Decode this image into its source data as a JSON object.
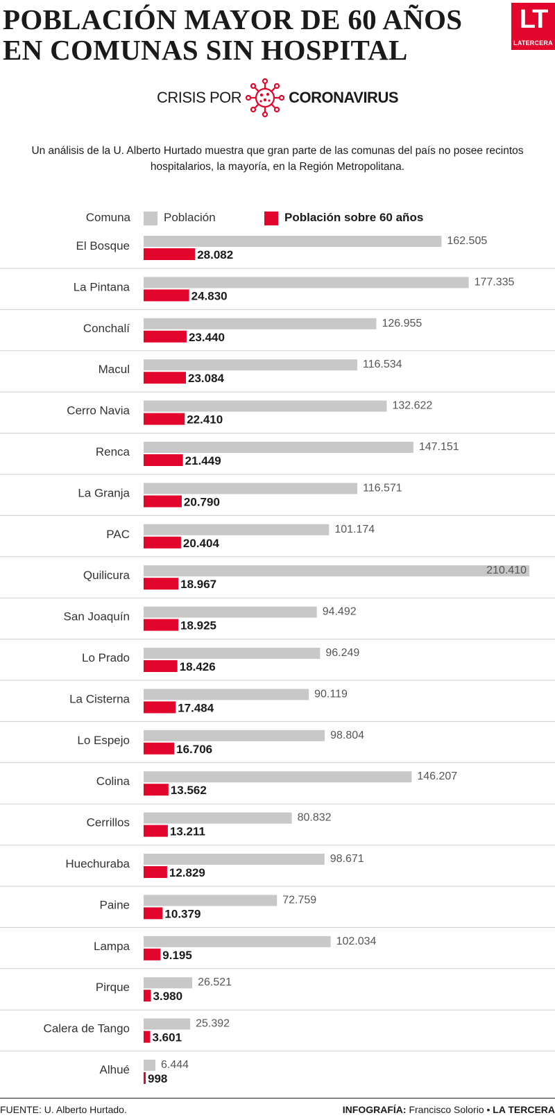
{
  "header": {
    "title_line1": "POBLACIÓN MAYOR DE 60 AÑOS",
    "title_line2": "EN COMUNAS SIN HOSPITAL",
    "logo_mark": "LT",
    "logo_name": "LATERCERA",
    "section_prefix": "CRISIS POR",
    "section_topic": "CORONAVIRUS",
    "intro": "Un análisis de la U. Alberto Hurtado muestra que gran parte de las comunas del país no posee recintos hospitalarios, la mayoría, en la Región Metropolitana."
  },
  "legend": {
    "category_label": "Comuna",
    "population_label": "Población",
    "over60_label": "Población sobre 60 años"
  },
  "colors": {
    "population": "#c8c8c8",
    "over60": "#e2062c",
    "divider": "#cfcfcf"
  },
  "chart_data": {
    "type": "bar",
    "orientation": "horizontal",
    "categories": [
      "El Bosque",
      "La Pintana",
      "Conchalí",
      "Macul",
      "Cerro Navia",
      "Renca",
      "La Granja",
      "PAC",
      "Quilicura",
      "San Joaquín",
      "Lo Prado",
      "La Cisterna",
      "Lo Espejo",
      "Colina",
      "Cerrillos",
      "Huechuraba",
      "Paine",
      "Lampa",
      "Pirque",
      "Calera de Tango",
      "Alhué"
    ],
    "series": [
      {
        "name": "Población",
        "values": [
          162505,
          177335,
          126955,
          116534,
          132622,
          147151,
          116571,
          101174,
          210410,
          94492,
          96249,
          90119,
          98804,
          146207,
          80832,
          98671,
          72759,
          102034,
          26521,
          25392,
          6444
        ],
        "labels": [
          "162.505",
          "177.335",
          "126.955",
          "116.534",
          "132.622",
          "147.151",
          "116.571",
          "101.174",
          "210.410",
          "94.492",
          "96.249",
          "90.119",
          "98.804",
          "146.207",
          "80.832",
          "98.671",
          "72.759",
          "102.034",
          "26.521",
          "25.392",
          "6.444"
        ]
      },
      {
        "name": "Población sobre 60 años",
        "values": [
          28082,
          24830,
          23440,
          23084,
          22410,
          21449,
          20790,
          20404,
          18967,
          18925,
          18426,
          17484,
          16706,
          13562,
          13211,
          12829,
          10379,
          9195,
          3980,
          3601,
          998
        ],
        "labels": [
          "28.082",
          "24.830",
          "23.440",
          "23.084",
          "22.410",
          "21.449",
          "20.790",
          "20.404",
          "18.967",
          "18.925",
          "18.426",
          "17.484",
          "16.706",
          "13.562",
          "13.211",
          "12.829",
          "10.379",
          "9.195",
          "3.980",
          "3.601",
          "998"
        ]
      }
    ],
    "xlim": [
      0,
      210410
    ],
    "grid": false,
    "legend_position": "top"
  },
  "footer": {
    "source": "FUENTE: U. Alberto Hurtado.",
    "credit_label": "INFOGRAFÍA:",
    "credit_name": "Francisco Solorio •",
    "credit_brand": "LA TERCERA"
  }
}
